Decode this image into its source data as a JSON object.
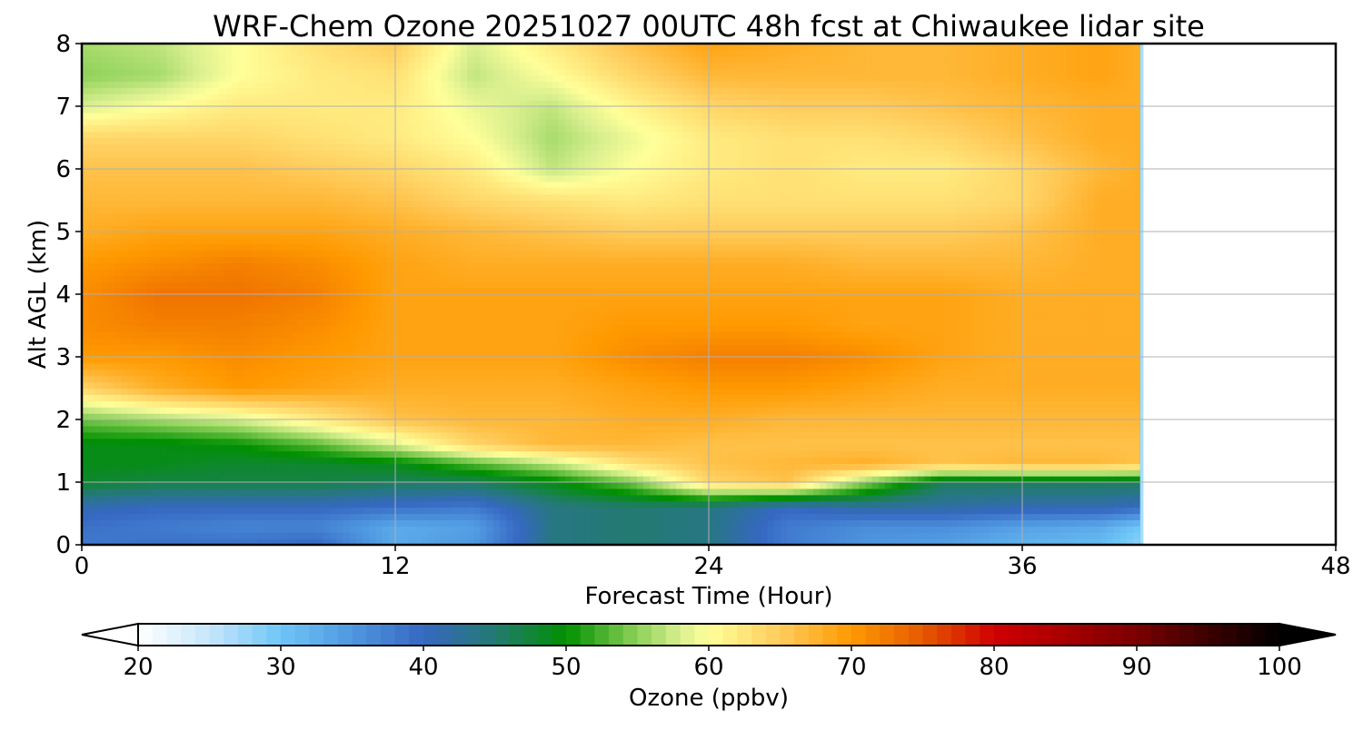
{
  "chart_data": {
    "type": "heatmap",
    "title": "WRF-Chem Ozone  20251027 00UTC 48h fcst at Chiwaukee lidar site",
    "xlabel": "Forecast Time (Hour)",
    "ylabel": "Alt AGL (km)",
    "xlim": [
      0,
      48
    ],
    "ylim": [
      0,
      8
    ],
    "xticks": [
      0,
      12,
      24,
      36,
      48
    ],
    "yticks": [
      0,
      1,
      2,
      3,
      4,
      5,
      6,
      7,
      8
    ],
    "grid": true,
    "data_end_hour": 40.5,
    "x": [
      0,
      3,
      6,
      9,
      12,
      15,
      18,
      21,
      24,
      27,
      30,
      33,
      36,
      39,
      40.5
    ],
    "y": [
      0,
      0.3,
      0.6,
      1,
      1.3,
      1.6,
      2,
      2.5,
      3,
      3.5,
      4,
      4.5,
      5,
      5.5,
      6,
      6.5,
      7,
      7.5,
      8
    ],
    "z": [
      [
        38,
        39,
        39,
        40,
        33,
        35,
        44,
        45,
        44,
        38,
        35,
        34,
        32,
        31,
        28
      ],
      [
        39,
        38,
        37,
        37,
        33,
        34,
        44,
        45,
        44,
        38,
        36,
        36,
        34,
        33,
        30
      ],
      [
        41,
        40,
        40,
        40,
        39,
        38,
        44,
        45,
        44,
        40,
        42,
        42,
        41,
        41,
        40
      ],
      [
        48,
        47,
        47,
        47,
        46,
        46,
        49,
        54,
        64,
        66,
        55,
        46,
        46,
        46,
        46
      ],
      [
        49,
        49,
        48,
        48,
        49,
        53,
        57,
        63,
        66,
        67,
        68,
        66,
        67,
        67,
        66
      ],
      [
        49,
        49,
        50,
        53,
        58,
        64,
        67,
        67,
        66,
        66,
        66,
        66,
        66,
        66,
        66
      ],
      [
        54,
        56,
        58,
        62,
        66,
        67,
        67,
        68,
        68,
        67,
        67,
        67,
        67,
        67,
        67
      ],
      [
        64,
        68,
        70,
        69,
        68,
        68,
        68,
        69,
        70,
        70,
        69,
        68,
        68,
        68,
        68
      ],
      [
        70,
        70,
        71,
        70,
        69,
        69,
        69,
        71,
        72,
        72,
        71,
        69,
        68,
        68,
        68
      ],
      [
        71,
        72,
        72,
        71,
        69,
        69,
        69,
        70,
        70,
        70,
        69,
        69,
        68,
        68,
        68
      ],
      [
        71,
        73,
        73,
        72,
        69,
        69,
        69,
        69,
        69,
        69,
        69,
        69,
        68,
        68,
        68
      ],
      [
        70,
        71,
        72,
        71,
        69,
        68,
        68,
        68,
        68,
        68,
        67,
        67,
        67,
        68,
        68
      ],
      [
        68,
        69,
        69,
        69,
        68,
        67,
        66,
        65,
        65,
        65,
        65,
        65,
        66,
        68,
        68
      ],
      [
        67,
        67,
        67,
        67,
        66,
        64,
        63,
        62,
        63,
        63,
        63,
        63,
        64,
        68,
        68
      ],
      [
        66,
        66,
        66,
        65,
        64,
        62,
        57,
        60,
        62,
        63,
        62,
        62,
        64,
        67,
        68
      ],
      [
        64,
        64,
        64,
        63,
        62,
        60,
        56,
        59,
        62,
        63,
        63,
        64,
        66,
        68,
        68
      ],
      [
        58,
        60,
        62,
        62,
        62,
        59,
        57,
        61,
        64,
        65,
        65,
        66,
        67,
        68,
        68
      ],
      [
        55,
        56,
        60,
        62,
        63,
        57,
        60,
        64,
        67,
        67,
        67,
        67,
        68,
        69,
        68
      ],
      [
        56,
        57,
        60,
        63,
        65,
        58,
        62,
        66,
        69,
        68,
        67,
        67,
        68,
        69,
        68
      ]
    ]
  },
  "colorbar": {
    "label": "Ozone  (ppbv)",
    "min": 20,
    "max": 100,
    "ticks": [
      20,
      30,
      40,
      50,
      60,
      70,
      80,
      90,
      100
    ],
    "extend": "both",
    "stops": [
      {
        "v": 20,
        "c": "#ffffff"
      },
      {
        "v": 25,
        "c": "#c6e6fb"
      },
      {
        "v": 30,
        "c": "#6ec6f7"
      },
      {
        "v": 35,
        "c": "#4f97e0"
      },
      {
        "v": 40,
        "c": "#3668c2"
      },
      {
        "v": 45,
        "c": "#237a72"
      },
      {
        "v": 50,
        "c": "#009000"
      },
      {
        "v": 55,
        "c": "#8dd159"
      },
      {
        "v": 58,
        "c": "#d9ef8f"
      },
      {
        "v": 60,
        "c": "#ffff99"
      },
      {
        "v": 65,
        "c": "#ffcc5c"
      },
      {
        "v": 70,
        "c": "#ff9900"
      },
      {
        "v": 75,
        "c": "#e55a00"
      },
      {
        "v": 80,
        "c": "#d00000"
      },
      {
        "v": 85,
        "c": "#a80000"
      },
      {
        "v": 90,
        "c": "#7a0000"
      },
      {
        "v": 95,
        "c": "#3c0000"
      },
      {
        "v": 100,
        "c": "#000000"
      }
    ]
  }
}
